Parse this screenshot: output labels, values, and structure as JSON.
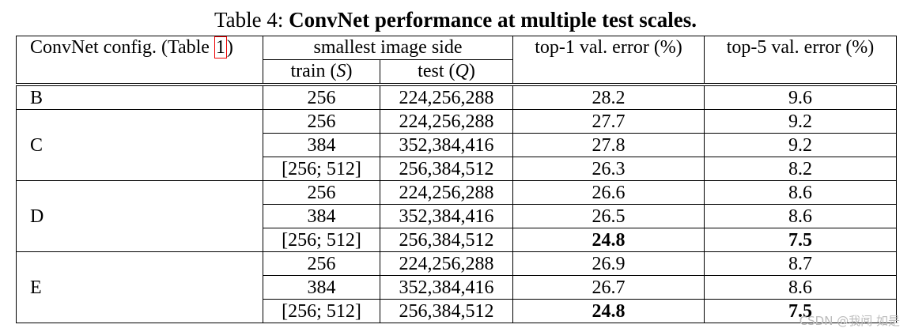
{
  "caption": {
    "label": "Table 4:",
    "text": "ConvNet performance at multiple test scales."
  },
  "header": {
    "config": {
      "before": "ConvNet config. (Table ",
      "ref": "1",
      "after": ")"
    },
    "image_side": "smallest image side",
    "train": {
      "before": "train (",
      "var": "S",
      "after": ")"
    },
    "test": {
      "before": "test (",
      "var": "Q",
      "after": ")"
    },
    "top1": "top-1 val. error (%)",
    "top5": "top-5 val. error (%)"
  },
  "groups": [
    {
      "config": "B",
      "rows": [
        {
          "cells": [
            256,
            "224,256,288",
            28.2,
            9.6
          ],
          "bold_errors": false
        }
      ]
    },
    {
      "config": "C",
      "rows": [
        {
          "cells": [
            256,
            "224,256,288",
            27.7,
            9.2
          ],
          "bold_errors": false
        },
        {
          "cells": [
            384,
            "352,384,416",
            27.8,
            9.2
          ],
          "bold_errors": false
        },
        {
          "cells": [
            "[256; 512]",
            "256,384,512",
            26.3,
            8.2
          ],
          "bold_errors": false
        }
      ]
    },
    {
      "config": "D",
      "rows": [
        {
          "cells": [
            256,
            "224,256,288",
            26.6,
            8.6
          ],
          "bold_errors": false
        },
        {
          "cells": [
            384,
            "352,384,416",
            26.5,
            8.6
          ],
          "bold_errors": false
        },
        {
          "cells": [
            "[256; 512]",
            "256,384,512",
            24.8,
            7.5
          ],
          "bold_errors": true
        }
      ]
    },
    {
      "config": "E",
      "rows": [
        {
          "cells": [
            256,
            "224,256,288",
            26.9,
            8.7
          ],
          "bold_errors": false
        },
        {
          "cells": [
            384,
            "352,384,416",
            26.7,
            8.6
          ],
          "bold_errors": false
        },
        {
          "cells": [
            "[256; 512]",
            "256,384,512",
            24.8,
            7.5
          ],
          "bold_errors": true
        }
      ]
    }
  ],
  "watermark": "CSDN @我闻 如是"
}
